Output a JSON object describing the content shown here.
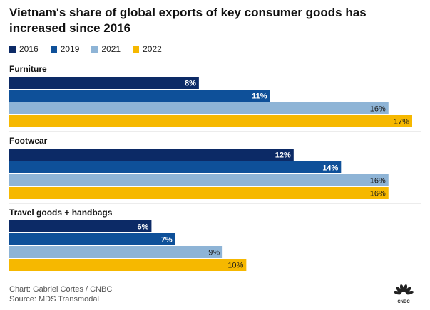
{
  "title": "Vietnam's share of global exports of key consumer goods has increased since 2016",
  "legend": [
    {
      "label": "2016",
      "color": "#0c2a66"
    },
    {
      "label": "2019",
      "color": "#0e5099"
    },
    {
      "label": "2021",
      "color": "#8eb4d6"
    },
    {
      "label": "2022",
      "color": "#f6b800"
    }
  ],
  "chart_data": {
    "type": "bar",
    "orientation": "horizontal",
    "title": "Vietnam's share of global exports of key consumer goods has increased since 2016",
    "unit": "%",
    "xlim": [
      0,
      17
    ],
    "categories": [
      "Furniture",
      "Footwear",
      "Travel goods + handbags"
    ],
    "series": [
      {
        "name": "2016",
        "color": "#0c2a66",
        "label_color": "#ffffff",
        "values": [
          8,
          12,
          6
        ],
        "labels": [
          "8%",
          "12%",
          "6%"
        ]
      },
      {
        "name": "2019",
        "color": "#0e5099",
        "label_color": "#ffffff",
        "values": [
          11,
          14,
          7
        ],
        "labels": [
          "11%",
          "14%",
          "7%"
        ]
      },
      {
        "name": "2021",
        "color": "#8eb4d6",
        "label_color": "#1a1a1a",
        "values": [
          16,
          16,
          9
        ],
        "labels": [
          "16%",
          "16%",
          "9%"
        ]
      },
      {
        "name": "2022",
        "color": "#f6b800",
        "label_color": "#1a1a1a",
        "values": [
          17,
          16,
          10
        ],
        "labels": [
          "17%",
          "16%",
          "10%"
        ]
      }
    ]
  },
  "footer": {
    "credit": "Chart: Gabriel Cortes / CNBC",
    "source": "Source: MDS Transmodal",
    "logo_text": "CNBC"
  }
}
